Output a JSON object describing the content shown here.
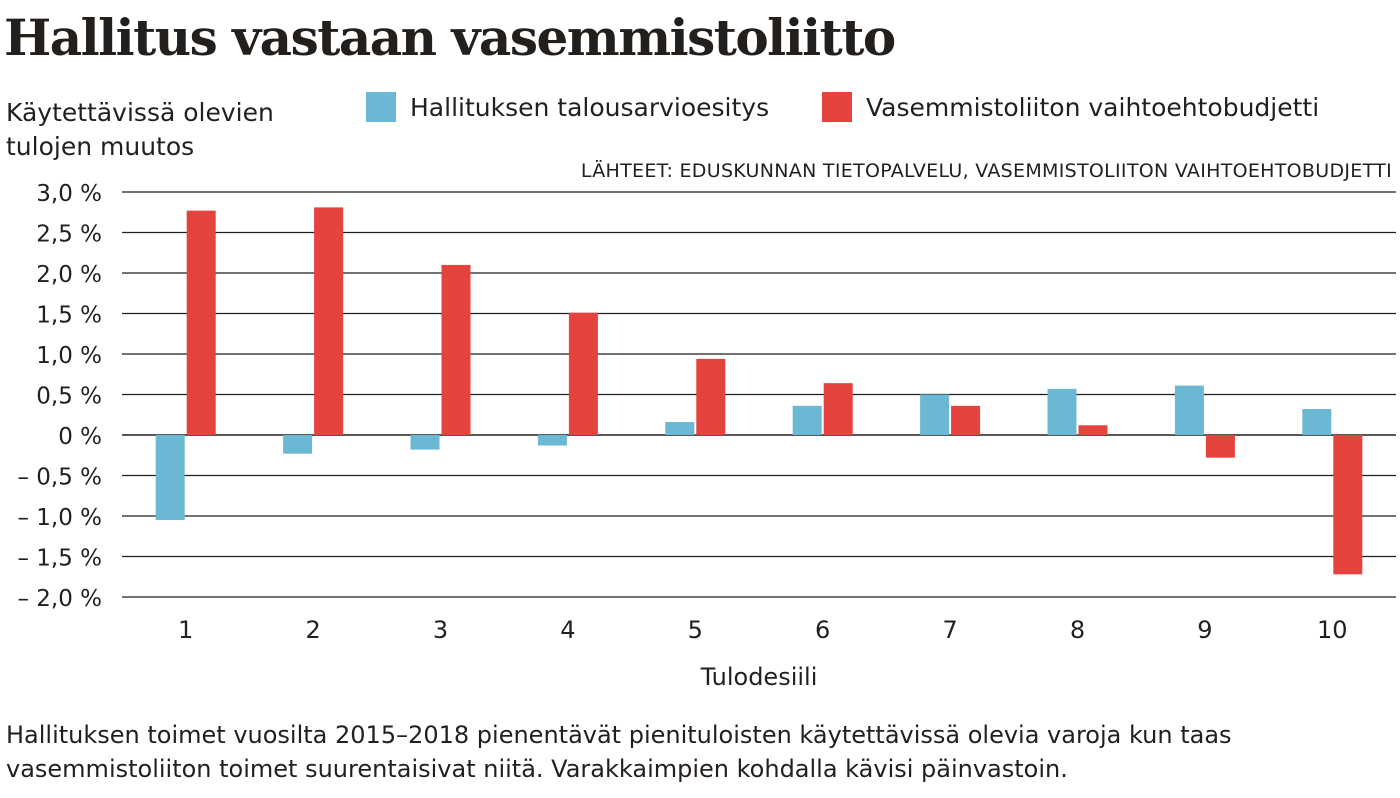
{
  "title": "Hallitus vastaan vasemmistoliitto",
  "source": "LÄHTEET: EDUSKUNNAN TIETOPALVELU, VASEMMISTOLIITON VAIHTOEHTOBUDJETTI",
  "caption": "Hallituksen toimet vuosilta 2015–2018 pienentävät pienituloisten käytettävissä olevia varoja kun taas vasemmistoliiton toimet suurentaisivat niitä. Varakkaimpien kohdalla kävisi päinvastoin.",
  "colors": {
    "blue": "#6ab8d4",
    "red": "#e5433e",
    "grid": "#231f1c",
    "text": "#231f1c"
  },
  "chart_data": {
    "type": "bar",
    "title": "Hallitus vastaan vasemmistoliitto",
    "ylabel": "Käytettävissä olevien tulojen muutos",
    "xlabel": "Tulodesiili",
    "categories": [
      "1",
      "2",
      "3",
      "4",
      "5",
      "6",
      "7",
      "8",
      "9",
      "10"
    ],
    "series": [
      {
        "name": "Hallituksen talousarvioesitys",
        "color": "#6ab8d4",
        "values": [
          -1.05,
          -0.23,
          -0.18,
          -0.13,
          0.16,
          0.36,
          0.5,
          0.57,
          0.61,
          0.32
        ]
      },
      {
        "name": "Vasemmistoliiton vaihtoehtobudjetti",
        "color": "#e5433e",
        "values": [
          2.77,
          2.81,
          2.1,
          1.51,
          0.94,
          0.64,
          0.36,
          0.12,
          -0.28,
          -1.72
        ]
      }
    ],
    "ylim": [
      -2.0,
      3.0
    ],
    "yticks": [
      3.0,
      2.5,
      2.0,
      1.5,
      1.0,
      0.5,
      0,
      -0.5,
      -1.0,
      -1.5,
      -2.0
    ],
    "ytick_labels": [
      "3,0 %",
      "2,5 %",
      "2,0 %",
      "1,5 %",
      "1,0 %",
      "0,5 %",
      "0 %",
      "– 0,5 %",
      "– 1,0 %",
      "– 1,5 %",
      "– 2,0 %"
    ],
    "grid": true,
    "legend": "top"
  }
}
